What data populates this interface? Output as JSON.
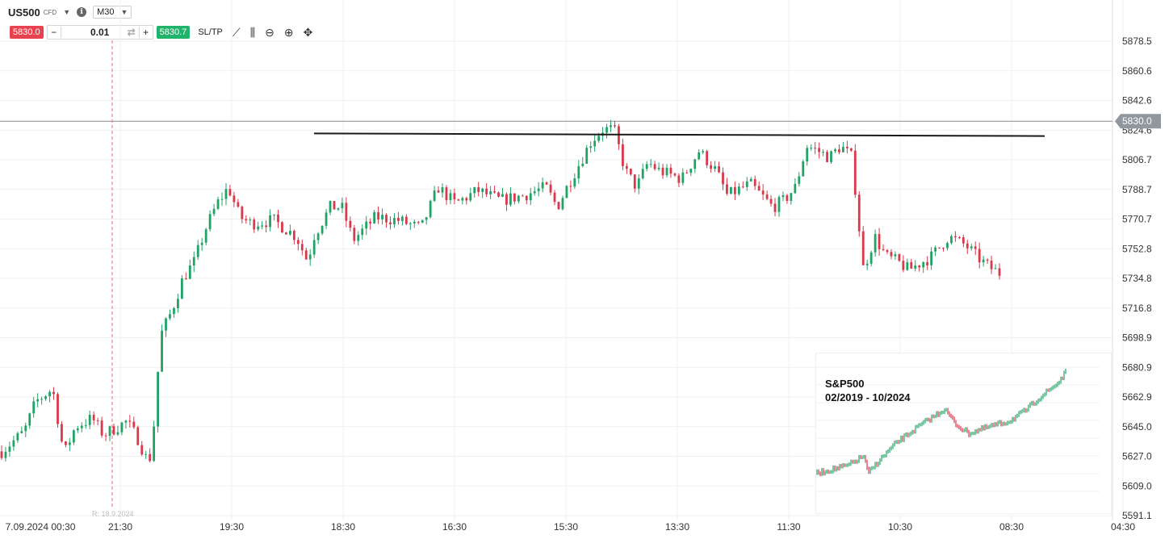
{
  "toolbar": {
    "symbol": "US500",
    "instrument_type": "CFD",
    "symbol_caret": "▼",
    "info_icon": "i",
    "timeframe": "M30",
    "timeframe_caret": "▼",
    "sell_price": "5830.0",
    "qty_minus": "−",
    "quantity": "0.01",
    "swap_icon": "⇄",
    "qty_plus": "+",
    "buy_price": "5830.7",
    "sltp_label": "SL/TP",
    "tools": [
      "line-chart-icon",
      "candles-icon",
      "zoom-out-icon",
      "zoom-in-icon",
      "crosshair-icon"
    ],
    "tool_glyphs": [
      "⟋",
      "⫼",
      "⊖",
      "⊕",
      "✥"
    ]
  },
  "chart_data": {
    "type": "candlestick",
    "price_axis_ticks": [
      "5878.5",
      "5860.6",
      "5842.6",
      "5824.6",
      "5806.7",
      "5788.7",
      "5770.7",
      "5752.8",
      "5734.8",
      "5716.8",
      "5698.9",
      "5680.9",
      "5662.9",
      "5645.0",
      "5627.0",
      "5609.0",
      "5591.1"
    ],
    "ylim": [
      5591.1,
      5878.5
    ],
    "time_axis_ticks": [
      "7.09.2024 00:30",
      "21:30",
      "19:30",
      "18:30",
      "16:30",
      "15:30",
      "13:30",
      "11:30",
      "10:30",
      "08:30",
      "04:30"
    ],
    "current_price_label": "5830.0",
    "current_price": 5830.0,
    "crosshair_label": "R: 18.9.2024",
    "resistance_line": {
      "start_price": 5822.6,
      "end_price": 5821.0
    },
    "close_path": [
      {
        "t": 0.0,
        "p": 5630
      },
      {
        "t": 0.02,
        "p": 5642
      },
      {
        "t": 0.03,
        "p": 5660
      },
      {
        "t": 0.045,
        "p": 5668
      },
      {
        "t": 0.055,
        "p": 5628
      },
      {
        "t": 0.065,
        "p": 5645
      },
      {
        "t": 0.08,
        "p": 5650
      },
      {
        "t": 0.09,
        "p": 5640
      },
      {
        "t": 0.11,
        "p": 5648
      },
      {
        "t": 0.12,
        "p": 5638
      },
      {
        "t": 0.13,
        "p": 5622
      },
      {
        "t": 0.135,
        "p": 5650
      },
      {
        "t": 0.14,
        "p": 5700
      },
      {
        "t": 0.15,
        "p": 5715
      },
      {
        "t": 0.16,
        "p": 5735
      },
      {
        "t": 0.17,
        "p": 5745
      },
      {
        "t": 0.18,
        "p": 5765
      },
      {
        "t": 0.19,
        "p": 5780
      },
      {
        "t": 0.2,
        "p": 5790
      },
      {
        "t": 0.21,
        "p": 5772
      },
      {
        "t": 0.22,
        "p": 5768
      },
      {
        "t": 0.24,
        "p": 5770
      },
      {
        "t": 0.26,
        "p": 5760
      },
      {
        "t": 0.27,
        "p": 5745
      },
      {
        "t": 0.275,
        "p": 5760
      },
      {
        "t": 0.29,
        "p": 5778
      },
      {
        "t": 0.3,
        "p": 5778
      },
      {
        "t": 0.31,
        "p": 5758
      },
      {
        "t": 0.33,
        "p": 5772
      },
      {
        "t": 0.35,
        "p": 5770
      },
      {
        "t": 0.37,
        "p": 5765
      },
      {
        "t": 0.385,
        "p": 5790
      },
      {
        "t": 0.4,
        "p": 5780
      },
      {
        "t": 0.42,
        "p": 5788
      },
      {
        "t": 0.44,
        "p": 5782
      },
      {
        "t": 0.46,
        "p": 5785
      },
      {
        "t": 0.48,
        "p": 5790
      },
      {
        "t": 0.49,
        "p": 5778
      },
      {
        "t": 0.5,
        "p": 5792
      },
      {
        "t": 0.51,
        "p": 5805
      },
      {
        "t": 0.52,
        "p": 5818
      },
      {
        "t": 0.53,
        "p": 5825
      },
      {
        "t": 0.54,
        "p": 5825
      },
      {
        "t": 0.55,
        "p": 5800
      },
      {
        "t": 0.56,
        "p": 5790
      },
      {
        "t": 0.57,
        "p": 5805
      },
      {
        "t": 0.58,
        "p": 5800
      },
      {
        "t": 0.6,
        "p": 5795
      },
      {
        "t": 0.615,
        "p": 5812
      },
      {
        "t": 0.63,
        "p": 5800
      },
      {
        "t": 0.64,
        "p": 5785
      },
      {
        "t": 0.66,
        "p": 5792
      },
      {
        "t": 0.67,
        "p": 5785
      },
      {
        "t": 0.68,
        "p": 5778
      },
      {
        "t": 0.69,
        "p": 5782
      },
      {
        "t": 0.7,
        "p": 5790
      },
      {
        "t": 0.71,
        "p": 5815
      },
      {
        "t": 0.72,
        "p": 5812
      },
      {
        "t": 0.73,
        "p": 5808
      },
      {
        "t": 0.74,
        "p": 5815
      },
      {
        "t": 0.75,
        "p": 5808
      },
      {
        "t": 0.76,
        "p": 5740
      },
      {
        "t": 0.77,
        "p": 5760
      },
      {
        "t": 0.78,
        "p": 5748
      },
      {
        "t": 0.79,
        "p": 5745
      },
      {
        "t": 0.8,
        "p": 5740
      },
      {
        "t": 0.82,
        "p": 5748
      },
      {
        "t": 0.835,
        "p": 5760
      },
      {
        "t": 0.85,
        "p": 5755
      },
      {
        "t": 0.86,
        "p": 5748
      },
      {
        "t": 0.87,
        "p": 5742
      },
      {
        "t": 0.88,
        "p": 5738
      }
    ]
  },
  "inset": {
    "title_line1": "S&P500",
    "title_line2": "02/2019 - 10/2024"
  }
}
